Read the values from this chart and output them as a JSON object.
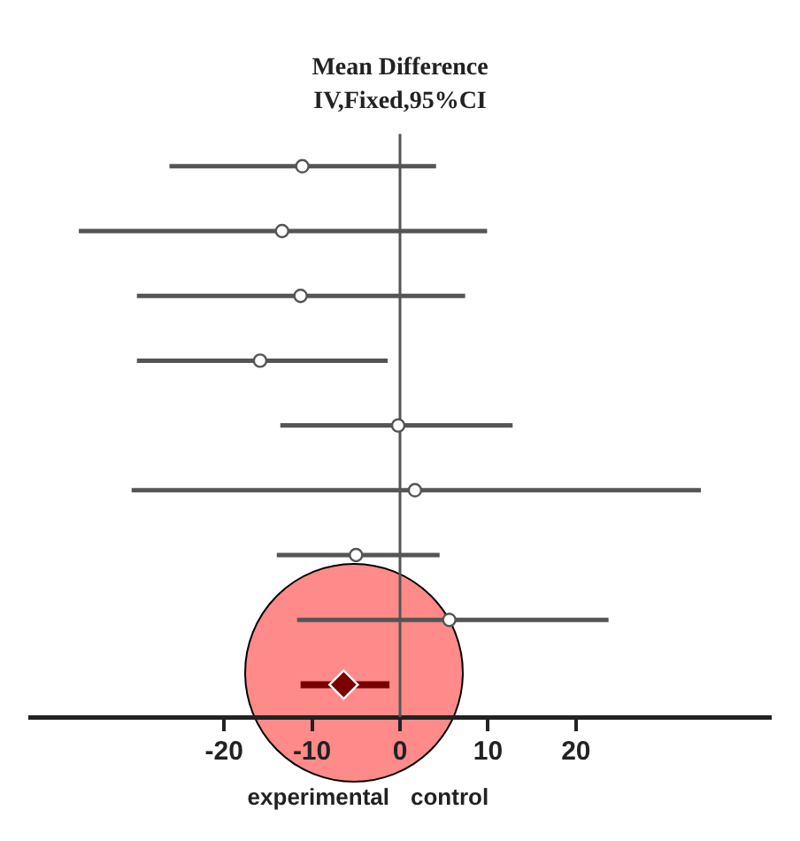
{
  "chart_data": {
    "type": "scatter",
    "orientation": "horizontal",
    "title": "Mean Difference",
    "subtitle": "IV,Fixed,95%CI",
    "categories": [
      null,
      null,
      null,
      null,
      null,
      null,
      null,
      null,
      null
    ],
    "series": [
      {
        "type": "scatter",
        "color": "#555555",
        "marker": "circle",
        "values": [
          -11.1,
          -13.4,
          -11.3,
          -15.9,
          -0.2,
          1.7,
          -5,
          5.6,
          null
        ],
        "errors": [
          [
            -26.2,
            4.1
          ],
          [
            -36.5,
            9.9
          ],
          [
            -29.9,
            7.4
          ],
          [
            -29.9,
            -1.4
          ],
          [
            -13.6,
            12.8
          ],
          [
            -30.5,
            34.2
          ],
          [
            -14,
            4.5
          ],
          [
            -11.7,
            23.7
          ],
          null
        ]
      },
      {
        "type": "scatter",
        "color": "#7a0000",
        "marker": "diamond",
        "values": [
          null,
          null,
          null,
          null,
          null,
          null,
          null,
          null,
          -6.4
        ],
        "errors": [
          null,
          null,
          null,
          null,
          null,
          null,
          null,
          null,
          [
            -11.3,
            -1.2
          ]
        ]
      }
    ],
    "xlim": [
      -42,
      42
    ],
    "xticks": [
      -20,
      -10,
      0,
      10,
      20
    ],
    "tick_labels": "x",
    "ref_lines": [
      {
        "axis": "x",
        "value": 0,
        "color": "#555555"
      }
    ],
    "annotations": [
      "experimental",
      "control"
    ],
    "grid": false,
    "legend": false
  }
}
